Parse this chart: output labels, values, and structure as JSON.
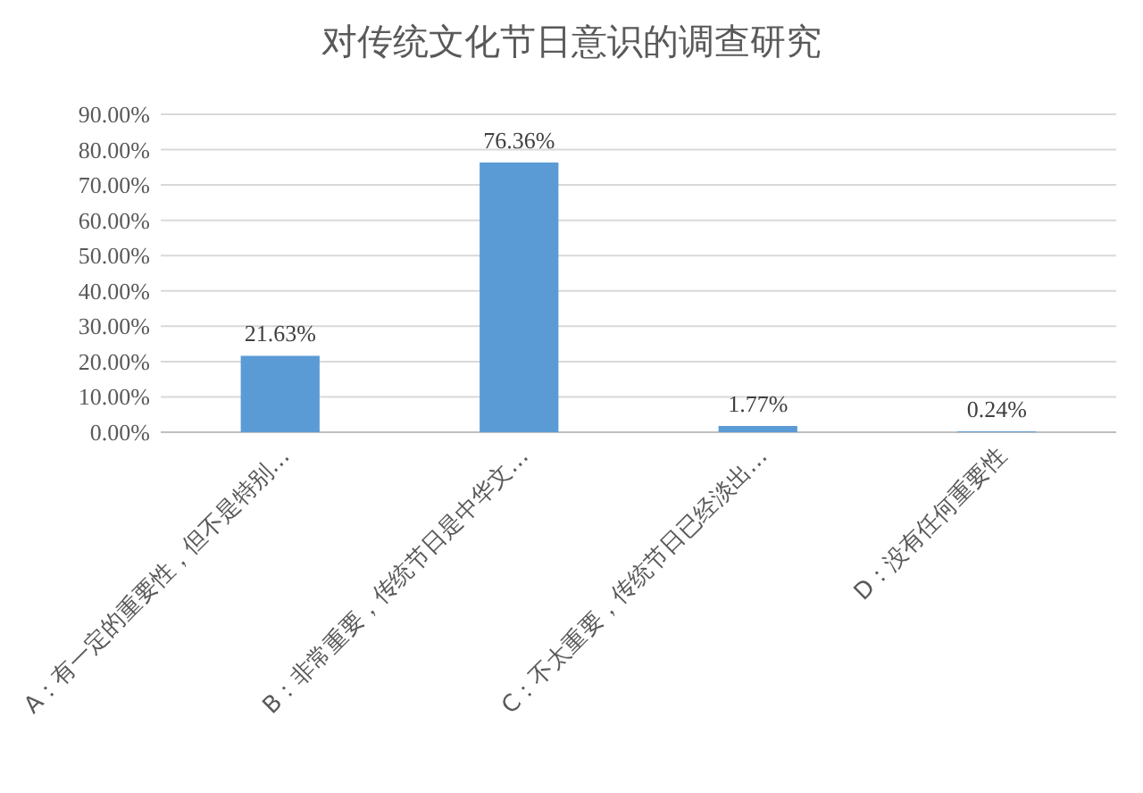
{
  "chart_data": {
    "type": "bar",
    "title": "对传统文化节日意识的调查研究",
    "categories": [
      "A：有一定的重要性，但不是特别…",
      "B：非常重要，传统节日是中华文…",
      "C：不太重要，传统节日已经淡出…",
      "D：没有任何重要性"
    ],
    "values": [
      21.63,
      76.36,
      1.77,
      0.24
    ],
    "color": "#5b9bd5",
    "value_labels": [
      "21.63%",
      "76.36%",
      "1.77%",
      "0.24%"
    ],
    "ylim": [
      0,
      90
    ],
    "yticks": [
      {
        "value": 0,
        "label": "0.00%"
      },
      {
        "value": 10,
        "label": "10.00%"
      },
      {
        "value": 20,
        "label": "20.00%"
      },
      {
        "value": 30,
        "label": "30.00%"
      },
      {
        "value": 40,
        "label": "40.00%"
      },
      {
        "value": 50,
        "label": "50.00%"
      },
      {
        "value": 60,
        "label": "60.00%"
      },
      {
        "value": 70,
        "label": "70.00%"
      },
      {
        "value": 80,
        "label": "80.00%"
      },
      {
        "value": 90,
        "label": "90.00%"
      }
    ],
    "grid": "y"
  }
}
